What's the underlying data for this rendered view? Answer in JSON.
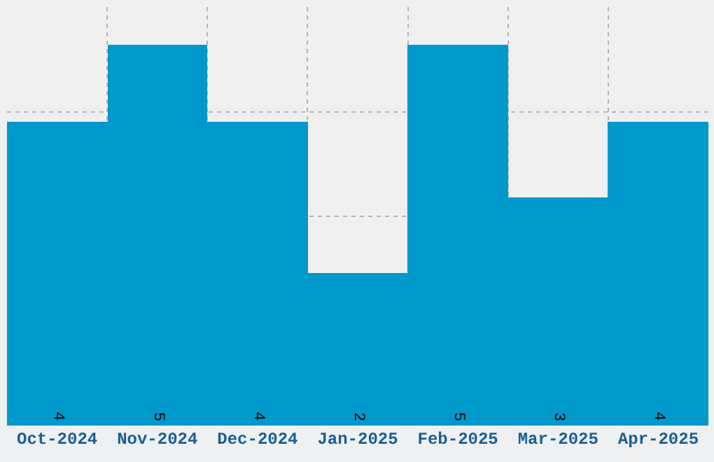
{
  "chart_data": {
    "type": "bar",
    "categories": [
      "Oct-2024",
      "Nov-2024",
      "Dec-2024",
      "Jan-2025",
      "Feb-2025",
      "Mar-2025",
      "Apr-2025"
    ],
    "values": [
      4,
      5,
      4,
      2,
      5,
      3,
      4
    ],
    "color": "#0099cc",
    "ylim": [
      0,
      5.5
    ],
    "grid": true,
    "tick_labels": "x",
    "data_labels": true
  }
}
